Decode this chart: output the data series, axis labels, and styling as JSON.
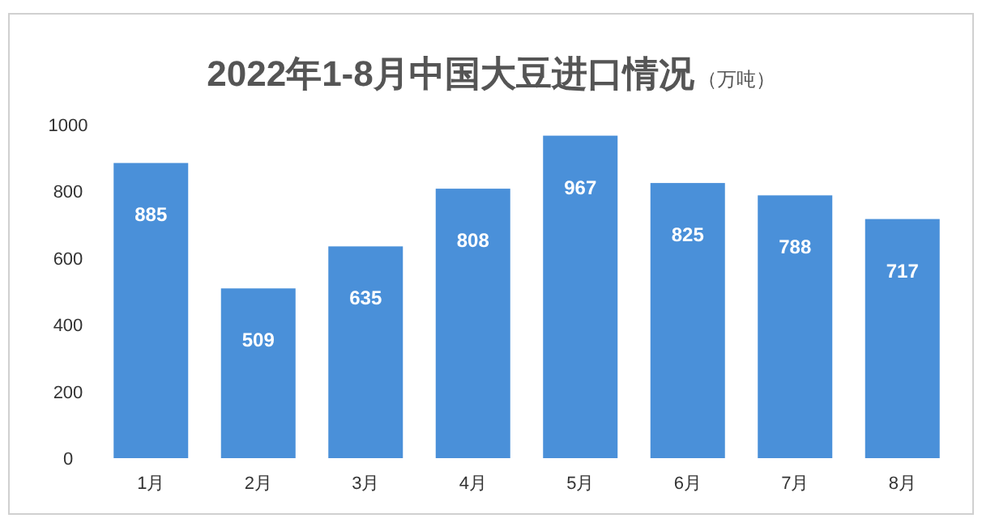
{
  "chart_data": {
    "type": "bar",
    "title": "2022年1-8月中国大豆进口情况",
    "subtitle": "（万吨）",
    "categories": [
      "1月",
      "2月",
      "3月",
      "4月",
      "5月",
      "6月",
      "7月",
      "8月"
    ],
    "values": [
      885,
      509,
      635,
      808,
      967,
      825,
      788,
      717
    ],
    "color": "#4a90d9",
    "ylim": [
      0,
      1000
    ],
    "yticks": [
      0,
      200,
      400,
      600,
      800,
      1000
    ],
    "data_labels": true,
    "grid": false
  }
}
